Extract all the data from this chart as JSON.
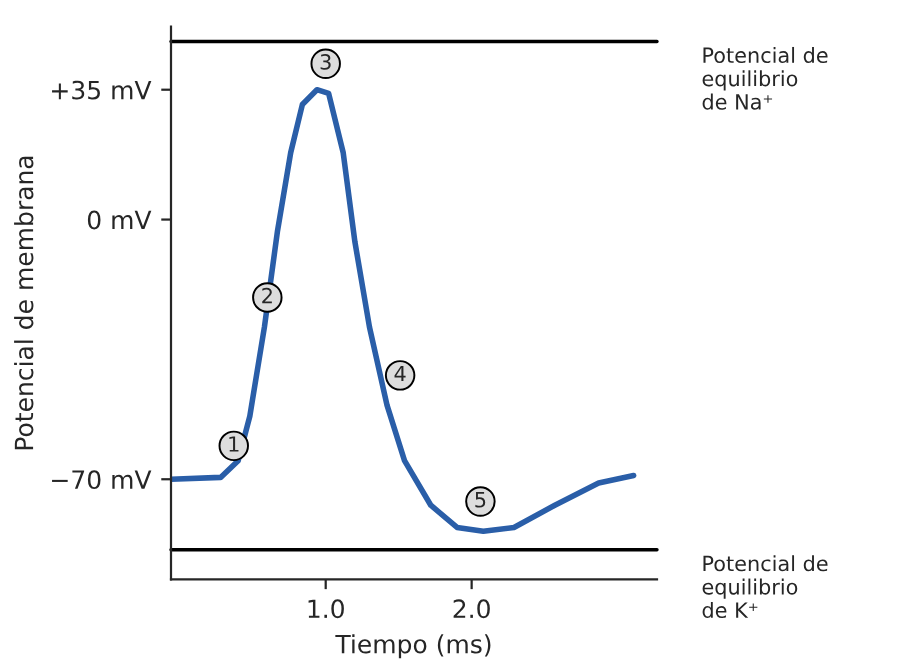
{
  "chart_data": {
    "type": "line",
    "xlabel": "Tiempo (ms)",
    "ylabel": "Potencial de membrana",
    "x": [
      -0.06,
      0.28,
      0.4,
      0.48,
      0.58,
      0.67,
      0.76,
      0.84,
      0.94,
      1.02,
      1.12,
      1.2,
      1.3,
      1.42,
      1.54,
      1.72,
      1.9,
      2.08,
      2.29,
      2.57,
      2.87,
      3.11
    ],
    "series": [
      {
        "color": "#2a5ea8",
        "values": [
          -70,
          -69.5,
          -65,
          -53,
          -29,
          -3,
          18,
          31,
          35,
          34,
          18,
          -6,
          -29,
          -50,
          -65,
          -77,
          -83,
          -84,
          -83,
          -77,
          -71,
          -69
        ]
      }
    ],
    "xlim": [
      -0.06,
      3.27
    ],
    "ylim": [
      -97,
      52
    ],
    "xticks": [
      {
        "value": 1,
        "label": "1.0"
      },
      {
        "value": 2,
        "label": "2.0"
      }
    ],
    "yticks": [
      {
        "value": -70,
        "label": "−70 mV"
      },
      {
        "value": 0,
        "label": "0 mV"
      },
      {
        "value": 35,
        "label": "+35 mV"
      }
    ],
    "ref_lines": [
      {
        "axis": "y",
        "value": 48,
        "label": "Potencial de\nequilibrio\nde Na⁺",
        "color": "#000000"
      },
      {
        "axis": "y",
        "value": -89,
        "label": "Potencial de\nequilibrio\nde K⁺",
        "color": "#000000"
      }
    ],
    "annotations": [
      {
        "text": "1",
        "x": 0.37,
        "y": -61
      },
      {
        "text": "2",
        "x": 0.6,
        "y": -21
      },
      {
        "text": "3",
        "x": 1.0,
        "y": 42
      },
      {
        "text": "4",
        "x": 1.51,
        "y": -42
      },
      {
        "text": "5",
        "x": 2.06,
        "y": -76
      }
    ],
    "grid": false,
    "legend": false,
    "marker": "none",
    "line_style": "solid"
  }
}
